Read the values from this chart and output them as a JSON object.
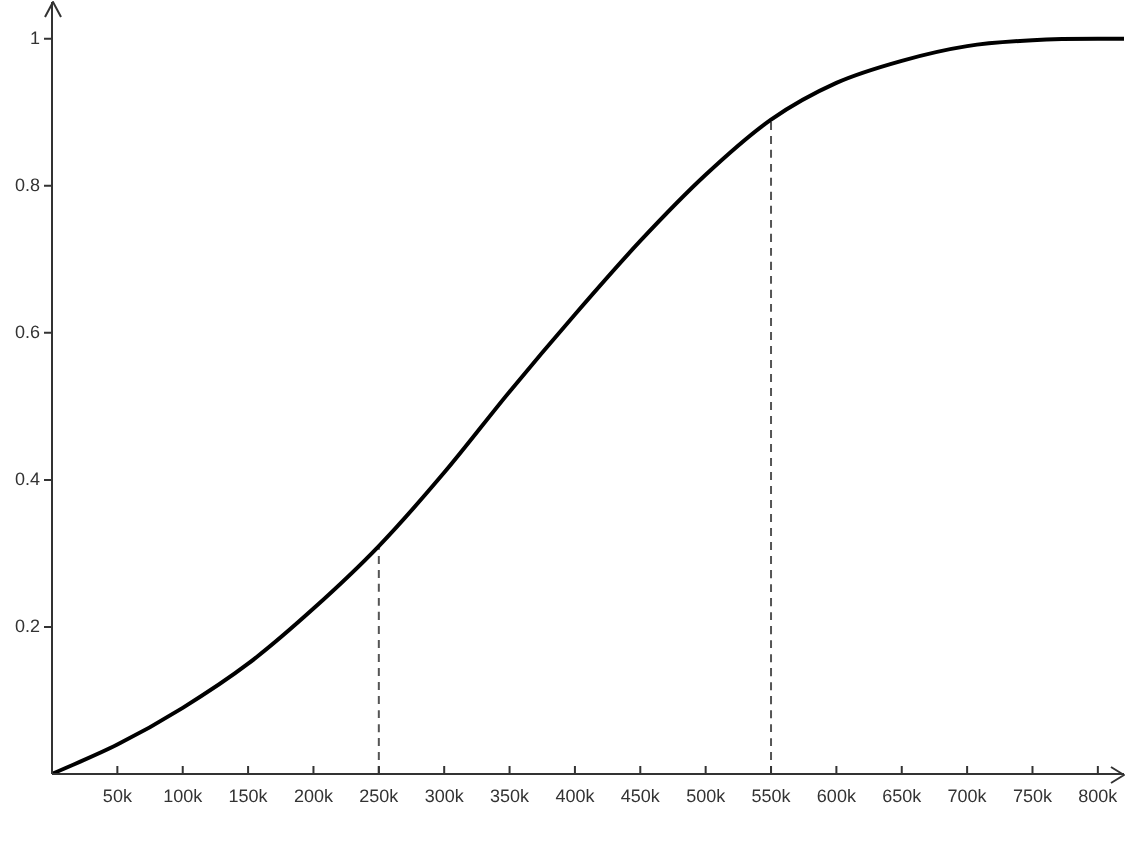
{
  "chart_data": {
    "type": "line",
    "xlim": [
      0,
      820000
    ],
    "ylim": [
      0,
      1.05
    ],
    "xticks": [
      {
        "value": 50000,
        "label": "50k"
      },
      {
        "value": 100000,
        "label": "100k"
      },
      {
        "value": 150000,
        "label": "150k"
      },
      {
        "value": 200000,
        "label": "200k"
      },
      {
        "value": 250000,
        "label": "250k"
      },
      {
        "value": 300000,
        "label": "300k"
      },
      {
        "value": 350000,
        "label": "350k"
      },
      {
        "value": 400000,
        "label": "400k"
      },
      {
        "value": 450000,
        "label": "450k"
      },
      {
        "value": 500000,
        "label": "500k"
      },
      {
        "value": 550000,
        "label": "550k"
      },
      {
        "value": 600000,
        "label": "600k"
      },
      {
        "value": 650000,
        "label": "650k"
      },
      {
        "value": 700000,
        "label": "700k"
      },
      {
        "value": 750000,
        "label": "750k"
      },
      {
        "value": 800000,
        "label": "800k"
      }
    ],
    "yticks": [
      0.2,
      0.4,
      0.6,
      0.8,
      1
    ],
    "marker": "none",
    "series": [
      {
        "color": "#000000",
        "line_style": "solid",
        "x": [
          0,
          50000,
          100000,
          150000,
          200000,
          250000,
          300000,
          350000,
          400000,
          450000,
          500000,
          550000,
          600000,
          650000,
          700000,
          750000,
          800000,
          820000
        ],
        "values": [
          0,
          0.04,
          0.09,
          0.15,
          0.225,
          0.31,
          0.41,
          0.52,
          0.625,
          0.725,
          0.815,
          0.89,
          0.94,
          0.97,
          0.99,
          0.998,
          1,
          1
        ]
      },
      {
        "color": "#555555",
        "line_style": "dashed",
        "x": [
          250000,
          250000
        ],
        "values": [
          0,
          0.31
        ]
      },
      {
        "color": "#555555",
        "line_style": "dashed",
        "x": [
          550000,
          550000
        ],
        "values": [
          0,
          0.89
        ]
      }
    ]
  }
}
